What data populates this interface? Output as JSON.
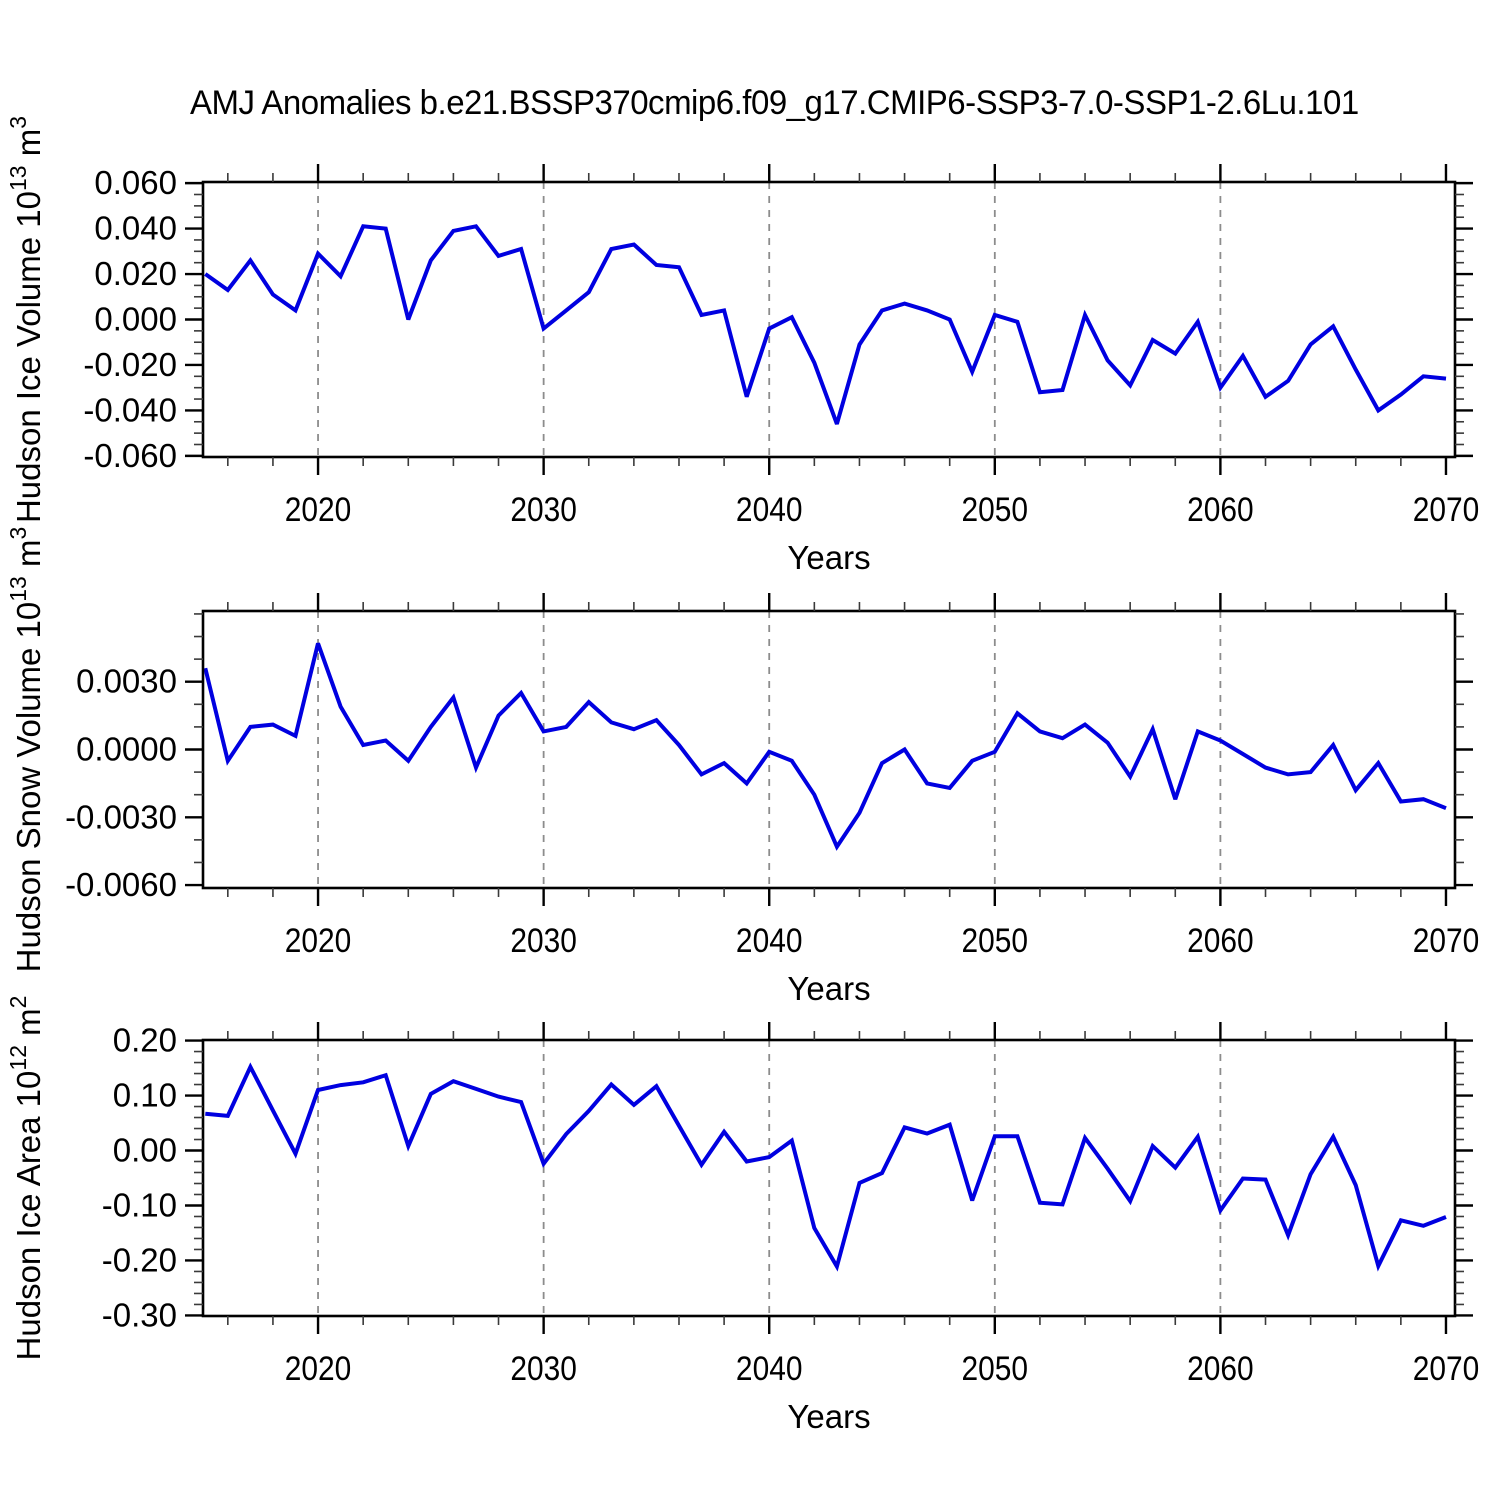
{
  "title": "AMJ Anomalies b.e21.BSSP370cmip6.f09_g17.CMIP6-SSP3-7.0-SSP1-2.6Lu.101",
  "colors": {
    "series_line": "#0000E0",
    "gridline": "#8c8c8c",
    "axis_frame": "#000000",
    "minor_tick": "#3a3a3a",
    "background": "#ffffff"
  },
  "x_axis": {
    "label": "Years",
    "start_year": 2015,
    "step_years": 1,
    "xlim": [
      2014.9,
      2070.4
    ],
    "major_ticks": [
      2020,
      2030,
      2040,
      2050,
      2060,
      2070
    ],
    "major_tick_labels": [
      "2020",
      "2030",
      "2040",
      "2050",
      "2060",
      "2070"
    ],
    "minor_step": 2,
    "grid_years": [
      2020,
      2030,
      2040,
      2050,
      2060
    ]
  },
  "chart_data": [
    {
      "type": "line",
      "panel": "hudson-ice-volume",
      "title": "AMJ Anomalies b.e21.BSSP370cmip6.f09_g17.CMIP6-SSP3-7.0-SSP1-2.6Lu.101",
      "xlabel": "Years",
      "ylabel": "Hudson Ice Volume 10^13 m^3",
      "ylabel_segments": [
        {
          "t": "Hudson Ice Volume 10",
          "sup": false
        },
        {
          "t": "13",
          "sup": true
        },
        {
          "t": " m",
          "sup": false
        },
        {
          "t": "3",
          "sup": true
        }
      ],
      "x_start": 2015,
      "x_step": 1,
      "ylim": [
        -0.0605,
        0.0605
      ],
      "ytick_values": [
        0.06,
        0.04,
        0.02,
        0.0,
        -0.02,
        -0.04,
        -0.06
      ],
      "ytick_labels": [
        "0.060",
        "0.040",
        "0.020",
        "0.000",
        "-0.020",
        "-0.040",
        "-0.060"
      ],
      "yminor_step": 0.005,
      "grid": "vertical-dashed-decades",
      "legend": "none",
      "series": [
        {
          "name": "AMJ ice volume anomaly",
          "values": [
            0.02,
            0.013,
            0.026,
            0.011,
            0.004,
            0.029,
            0.019,
            0.041,
            0.04,
            0.0,
            0.026,
            0.039,
            0.041,
            0.028,
            0.031,
            -0.004,
            0.004,
            0.012,
            0.031,
            0.033,
            0.024,
            0.023,
            0.002,
            0.004,
            -0.034,
            -0.004,
            0.001,
            -0.019,
            -0.046,
            -0.011,
            0.004,
            0.007,
            0.004,
            0.0,
            -0.023,
            0.002,
            -0.001,
            -0.032,
            -0.031,
            0.002,
            -0.018,
            -0.029,
            -0.009,
            -0.015,
            -0.001,
            -0.03,
            -0.016,
            -0.034,
            -0.027,
            -0.011,
            -0.003,
            -0.022,
            -0.04,
            -0.033,
            -0.025,
            -0.026
          ]
        }
      ]
    },
    {
      "type": "line",
      "panel": "hudson-snow-volume",
      "xlabel": "Years",
      "ylabel": "Hudson Snow Volume 10^13 m^3",
      "ylabel_segments": [
        {
          "t": "Hudson Snow Volume 10",
          "sup": false
        },
        {
          "t": "13",
          "sup": true
        },
        {
          "t": " m",
          "sup": false
        },
        {
          "t": "3",
          "sup": true
        }
      ],
      "x_start": 2015,
      "x_step": 1,
      "ylim": [
        -0.00613,
        0.00613
      ],
      "ytick_values": [
        0.003,
        0.0,
        -0.003,
        -0.006
      ],
      "ytick_labels": [
        "0.0030",
        "0.0000",
        "-0.0030",
        "-0.0060"
      ],
      "yminor_step": 0.001,
      "grid": "vertical-dashed-decades",
      "legend": "none",
      "series": [
        {
          "name": "AMJ snow volume anomaly",
          "values": [
            0.0036,
            -0.0005,
            0.001,
            0.0011,
            0.0006,
            0.0047,
            0.0019,
            0.0002,
            0.0004,
            -0.0005,
            0.001,
            0.0023,
            -0.0008,
            0.0015,
            0.0025,
            0.0008,
            0.001,
            0.0021,
            0.0012,
            0.0009,
            0.0013,
            0.0002,
            -0.0011,
            -0.0006,
            -0.0015,
            -0.0001,
            -0.0005,
            -0.002,
            -0.0043,
            -0.0028,
            -0.0006,
            0.0,
            -0.0015,
            -0.0017,
            -0.0005,
            -0.0001,
            0.0016,
            0.0008,
            0.0005,
            0.0011,
            0.0003,
            -0.0012,
            0.0009,
            -0.0022,
            0.0008,
            0.0004,
            -0.0002,
            -0.0008,
            -0.0011,
            -0.001,
            0.0002,
            -0.0018,
            -0.0006,
            -0.0023,
            -0.0022,
            -0.0026
          ]
        }
      ]
    },
    {
      "type": "line",
      "panel": "hudson-ice-area",
      "xlabel": "Years",
      "ylabel": "Hudson Ice Area 10^12 m^2",
      "ylabel_segments": [
        {
          "t": "Hudson Ice Area 10",
          "sup": false
        },
        {
          "t": "12",
          "sup": true
        },
        {
          "t": " m",
          "sup": false
        },
        {
          "t": "2",
          "sup": true
        }
      ],
      "x_start": 2015,
      "x_step": 1,
      "ylim": [
        -0.301,
        0.201
      ],
      "ytick_values": [
        0.2,
        0.1,
        0.0,
        -0.1,
        -0.2,
        -0.3
      ],
      "ytick_labels": [
        "0.20",
        "0.10",
        "0.00",
        "-0.10",
        "-0.20",
        "-0.30"
      ],
      "yminor_step": 0.02,
      "grid": "vertical-dashed-decades",
      "legend": "none",
      "series": [
        {
          "name": "AMJ ice area anomaly",
          "values": [
            0.067,
            0.063,
            0.152,
            0.073,
            -0.006,
            0.11,
            0.119,
            0.124,
            0.137,
            0.008,
            0.103,
            0.126,
            0.112,
            0.098,
            0.088,
            -0.024,
            0.03,
            0.072,
            0.12,
            0.083,
            0.117,
            0.045,
            -0.026,
            0.034,
            -0.02,
            -0.012,
            0.018,
            -0.141,
            -0.211,
            -0.059,
            -0.041,
            0.042,
            0.031,
            0.047,
            -0.091,
            0.026,
            0.026,
            -0.095,
            -0.098,
            0.023,
            -0.033,
            -0.092,
            0.008,
            -0.031,
            0.025,
            -0.109,
            -0.051,
            -0.053,
            -0.154,
            -0.043,
            0.025,
            -0.063,
            -0.21,
            -0.127,
            -0.137,
            -0.121
          ]
        }
      ]
    }
  ]
}
